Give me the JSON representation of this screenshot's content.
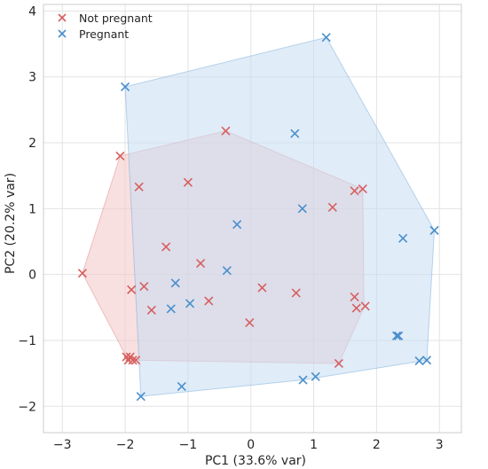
{
  "chart_data": {
    "type": "scatter",
    "xlabel": "PC1 (33.6% var)",
    "ylabel": "PC2 (20.2% var)",
    "xlim": [
      -3.3,
      3.35
    ],
    "ylim": [
      -2.4,
      4.1
    ],
    "xticks": [
      "−3",
      "−2",
      "−1",
      "0",
      "1",
      "2",
      "3"
    ],
    "xtick_values": [
      -3,
      -2,
      -1,
      0,
      1,
      2,
      3
    ],
    "yticks": [
      "−2",
      "−1",
      "0",
      "1",
      "2",
      "3",
      "4"
    ],
    "ytick_values": [
      -2,
      -1,
      0,
      1,
      2,
      3,
      4
    ],
    "grid": true,
    "marker": "x",
    "legend_position": "top-left",
    "series": [
      {
        "name": "Not pregnant",
        "color": "#d65f5f",
        "fill": "#f4c6c6",
        "hull": [
          [
            -2.68,
            0.02
          ],
          [
            -2.08,
            1.8
          ],
          [
            -0.4,
            2.18
          ],
          [
            1.78,
            1.3
          ],
          [
            1.8,
            -0.5
          ],
          [
            1.4,
            -1.35
          ],
          [
            -1.83,
            -1.3
          ],
          [
            -1.98,
            -1.25
          ]
        ],
        "points": [
          [
            -2.68,
            0.02
          ],
          [
            -2.08,
            1.8
          ],
          [
            -0.4,
            2.18
          ],
          [
            -1.78,
            1.33
          ],
          [
            -1.0,
            1.4
          ],
          [
            1.65,
            1.27
          ],
          [
            1.78,
            1.3
          ],
          [
            1.3,
            1.02
          ],
          [
            -1.35,
            0.42
          ],
          [
            -0.8,
            0.17
          ],
          [
            -1.9,
            -0.23
          ],
          [
            -1.7,
            -0.18
          ],
          [
            -1.58,
            -0.54
          ],
          [
            -0.67,
            -0.4
          ],
          [
            0.18,
            -0.2
          ],
          [
            0.72,
            -0.28
          ],
          [
            1.65,
            -0.34
          ],
          [
            1.68,
            -0.51
          ],
          [
            1.82,
            -0.48
          ],
          [
            -0.02,
            -0.73
          ],
          [
            -1.98,
            -1.25
          ],
          [
            -1.92,
            -1.25
          ],
          [
            -1.95,
            -1.3
          ],
          [
            -1.88,
            -1.3
          ],
          [
            -1.83,
            -1.3
          ],
          [
            1.4,
            -1.35
          ]
        ]
      },
      {
        "name": "Pregnant",
        "color": "#4a8fcc",
        "fill": "#c7ddf2",
        "hull": [
          [
            -2.0,
            2.85
          ],
          [
            1.2,
            3.6
          ],
          [
            2.92,
            0.67
          ],
          [
            2.8,
            -1.3
          ],
          [
            0.83,
            -1.6
          ],
          [
            -1.75,
            -1.85
          ]
        ],
        "points": [
          [
            1.2,
            3.6
          ],
          [
            -2.0,
            2.85
          ],
          [
            0.7,
            2.14
          ],
          [
            0.82,
            1.0
          ],
          [
            -0.22,
            0.76
          ],
          [
            2.42,
            0.55
          ],
          [
            2.92,
            0.67
          ],
          [
            -0.38,
            0.06
          ],
          [
            -1.2,
            -0.13
          ],
          [
            -1.27,
            -0.52
          ],
          [
            -0.97,
            -0.44
          ],
          [
            2.32,
            -0.93
          ],
          [
            2.35,
            -0.93
          ],
          [
            2.68,
            -1.31
          ],
          [
            2.8,
            -1.3
          ],
          [
            1.03,
            -1.55
          ],
          [
            0.83,
            -1.6
          ],
          [
            -1.1,
            -1.7
          ],
          [
            -1.75,
            -1.85
          ]
        ]
      }
    ]
  }
}
